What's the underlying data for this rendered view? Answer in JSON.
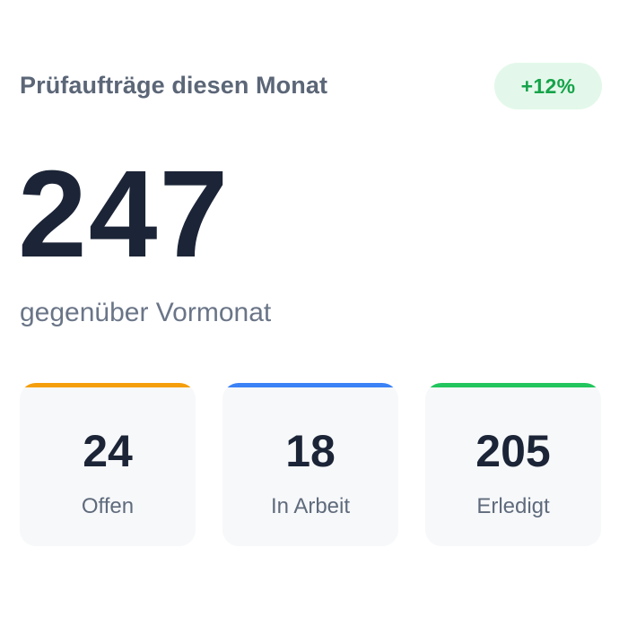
{
  "card": {
    "title": "Prüfaufträge diesen Monat",
    "trend": "+12%",
    "total": "247",
    "comparison": "gegenüber Vormonat"
  },
  "stats": [
    {
      "value": "24",
      "label": "Offen",
      "accent": "#f59e0b"
    },
    {
      "value": "18",
      "label": "In Arbeit",
      "accent": "#3b82f6"
    },
    {
      "value": "205",
      "label": "Erledigt",
      "accent": "#22c55e"
    }
  ],
  "colors": {
    "text_primary": "#1c2537",
    "text_muted": "#5b6677",
    "trend_positive": "#16a34a",
    "trend_badge_bg": "#e3f8ea",
    "stat_bg": "#f7f8fa"
  }
}
